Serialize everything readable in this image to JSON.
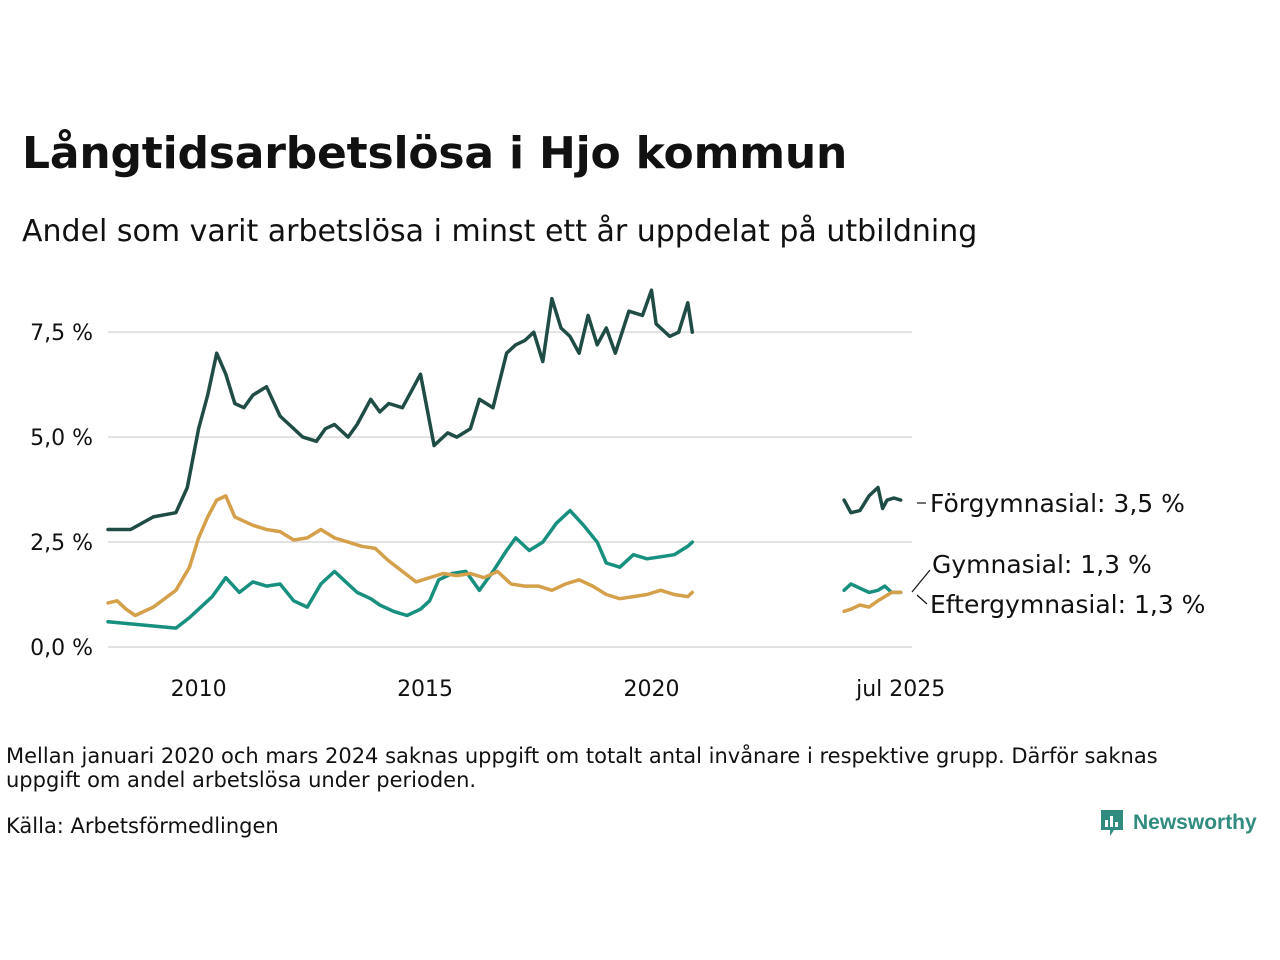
{
  "title": "Långtidsarbetslösa i Hjo kommun",
  "subtitle": "Andel som varit arbetslösa i minst ett år uppdelat på utbildning",
  "note": "Mellan januari 2020 och mars 2024 saknas uppgift om totalt antal invånare i respektive grupp. Därför saknas uppgift om andel arbetslösa under perioden.",
  "source": "Källa: Arbetsförmedlingen",
  "brand": "Newsworthy",
  "colors": {
    "forgymnasial": "#1f4d46",
    "gymnasial": "#18907f",
    "eftergymnasial": "#d4a04a",
    "grid": "#e2e2e2",
    "brand": "#2f8c7e"
  },
  "chart_data": {
    "type": "line",
    "y_tick_labels": [
      "0,0 %",
      "2,5 %",
      "5,0 %",
      "7,5 %"
    ],
    "y_ticks": [
      0,
      2.5,
      5.0,
      7.5
    ],
    "x_tick_labels": [
      "2010",
      "2015",
      "2020",
      "jul 2025"
    ],
    "x_ticks": [
      2010,
      2015,
      2020,
      2025.5
    ],
    "xlim": [
      2008.0,
      2025.75
    ],
    "ylim": [
      0,
      8.6
    ],
    "grid": true,
    "legend": "end-of-line labels",
    "series": [
      {
        "name": "Förgymnasial",
        "label": "Förgymnasial: 3,5 %",
        "color_key": "forgymnasial",
        "segments": [
          {
            "x": [
              2008.0,
              2008.5,
              2009.0,
              2009.5,
              2009.75,
              2010.0,
              2010.2,
              2010.4,
              2010.6,
              2010.8,
              2011.0,
              2011.2,
              2011.5,
              2011.8,
              2012.0,
              2012.3,
              2012.6,
              2012.8,
              2013.0,
              2013.3,
              2013.5,
              2013.8,
              2014.0,
              2014.2,
              2014.5,
              2014.7,
              2014.9,
              2015.2,
              2015.5,
              2015.7,
              2016.0,
              2016.2,
              2016.5,
              2016.8,
              2017.0,
              2017.2,
              2017.4,
              2017.6,
              2017.8,
              2018.0,
              2018.2,
              2018.4,
              2018.6,
              2018.8,
              2019.0,
              2019.2,
              2019.5,
              2019.8,
              2020.0,
              2020.1,
              2020.2,
              2020.4,
              2020.6,
              2020.8,
              2020.9
            ],
            "y": [
              2.8,
              2.8,
              3.1,
              3.2,
              3.8,
              5.2,
              6.0,
              7.0,
              6.5,
              5.8,
              5.7,
              6.0,
              6.2,
              5.5,
              5.3,
              5.0,
              4.9,
              5.2,
              5.3,
              5.0,
              5.3,
              5.9,
              5.6,
              5.8,
              5.7,
              6.1,
              6.5,
              4.8,
              5.1,
              5.0,
              5.2,
              5.9,
              5.7,
              7.0,
              7.2,
              7.3,
              7.5,
              6.8,
              8.3,
              7.6,
              7.4,
              7.0,
              7.9,
              7.2,
              7.6,
              7.0,
              8.0,
              7.9,
              8.5,
              7.7,
              7.6,
              7.4,
              7.5,
              8.2,
              7.5
            ]
          },
          {
            "x": [
              2024.25,
              2024.4,
              2024.6,
              2024.8,
              2025.0,
              2025.1,
              2025.2,
              2025.35,
              2025.5
            ],
            "y": [
              3.5,
              3.2,
              3.25,
              3.6,
              3.8,
              3.3,
              3.5,
              3.55,
              3.5
            ]
          }
        ]
      },
      {
        "name": "Gymnasial",
        "label": "Gymnasial: 1,3 %",
        "color_key": "gymnasial",
        "segments": [
          {
            "x": [
              2008.0,
              2008.5,
              2009.0,
              2009.5,
              2009.8,
              2010.0,
              2010.3,
              2010.6,
              2010.9,
              2011.2,
              2011.5,
              2011.8,
              2012.1,
              2012.4,
              2012.7,
              2013.0,
              2013.2,
              2013.5,
              2013.8,
              2014.0,
              2014.3,
              2014.6,
              2014.9,
              2015.1,
              2015.3,
              2015.6,
              2015.9,
              2016.2,
              2016.5,
              2016.8,
              2017.0,
              2017.3,
              2017.6,
              2017.9,
              2018.2,
              2018.5,
              2018.8,
              2019.0,
              2019.3,
              2019.6,
              2019.9,
              2020.2,
              2020.5,
              2020.8,
              2020.9
            ],
            "y": [
              0.6,
              0.55,
              0.5,
              0.45,
              0.7,
              0.9,
              1.2,
              1.65,
              1.3,
              1.55,
              1.45,
              1.5,
              1.1,
              0.95,
              1.5,
              1.8,
              1.6,
              1.3,
              1.15,
              1.0,
              0.85,
              0.75,
              0.9,
              1.1,
              1.6,
              1.75,
              1.8,
              1.35,
              1.8,
              2.3,
              2.6,
              2.3,
              2.5,
              2.95,
              3.25,
              2.9,
              2.5,
              2.0,
              1.9,
              2.2,
              2.1,
              2.15,
              2.2,
              2.4,
              2.5
            ]
          },
          {
            "x": [
              2024.25,
              2024.4,
              2024.6,
              2024.8,
              2025.0,
              2025.15,
              2025.3,
              2025.5
            ],
            "y": [
              1.35,
              1.5,
              1.4,
              1.3,
              1.35,
              1.45,
              1.3,
              1.3
            ]
          }
        ]
      },
      {
        "name": "Eftergymnasial",
        "label": "Eftergymnasial: 1,3 %",
        "color_key": "eftergymnasial",
        "segments": [
          {
            "x": [
              2008.0,
              2008.2,
              2008.4,
              2008.6,
              2009.0,
              2009.5,
              2009.8,
              2010.0,
              2010.2,
              2010.4,
              2010.6,
              2010.8,
              2011.2,
              2011.5,
              2011.8,
              2012.1,
              2012.4,
              2012.7,
              2013.0,
              2013.3,
              2013.6,
              2013.9,
              2014.2,
              2014.5,
              2014.8,
              2015.1,
              2015.4,
              2015.7,
              2016.0,
              2016.3,
              2016.6,
              2016.9,
              2017.2,
              2017.5,
              2017.8,
              2018.1,
              2018.4,
              2018.7,
              2019.0,
              2019.3,
              2019.6,
              2019.9,
              2020.2,
              2020.5,
              2020.8,
              2020.9
            ],
            "y": [
              1.05,
              1.1,
              0.9,
              0.75,
              0.95,
              1.35,
              1.9,
              2.6,
              3.1,
              3.5,
              3.6,
              3.1,
              2.9,
              2.8,
              2.75,
              2.55,
              2.6,
              2.8,
              2.6,
              2.5,
              2.4,
              2.35,
              2.05,
              1.8,
              1.55,
              1.65,
              1.75,
              1.7,
              1.75,
              1.65,
              1.8,
              1.5,
              1.45,
              1.45,
              1.35,
              1.5,
              1.6,
              1.45,
              1.25,
              1.15,
              1.2,
              1.25,
              1.35,
              1.25,
              1.2,
              1.3
            ]
          },
          {
            "x": [
              2024.25,
              2024.4,
              2024.6,
              2024.8,
              2025.0,
              2025.15,
              2025.3,
              2025.5
            ],
            "y": [
              0.85,
              0.9,
              1.0,
              0.95,
              1.1,
              1.2,
              1.3,
              1.3
            ]
          }
        ]
      }
    ]
  }
}
